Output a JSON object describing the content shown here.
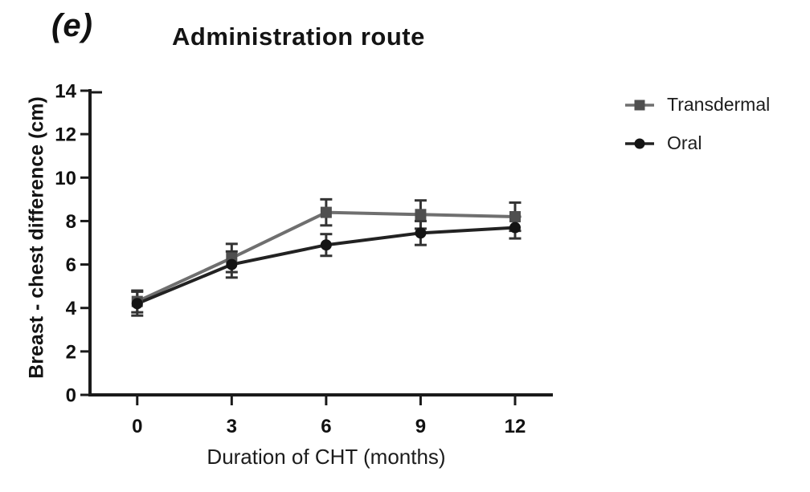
{
  "figure": {
    "panel_label": "(e)"
  },
  "chart_data": {
    "type": "line",
    "title": "Administration route",
    "xlabel": "Duration of CHT (months)",
    "ylabel": "Breast - chest difference (cm)",
    "x": [
      0,
      3,
      6,
      9,
      12
    ],
    "xticks": [
      0,
      3,
      6,
      9,
      12
    ],
    "yticks": [
      0,
      2,
      4,
      6,
      8,
      10,
      12,
      14
    ],
    "xlim": [
      -1.5,
      13.2
    ],
    "ylim": [
      0,
      14
    ],
    "grid": false,
    "legend_position": "right-of-plot-top",
    "axis_color": "#1a1a1a",
    "error_bar_color": "#333333",
    "series": [
      {
        "name": "Transdermal",
        "marker": "square",
        "line_color": "#6f6f6f",
        "marker_color": "#4f4f4f",
        "values": [
          4.3,
          6.3,
          8.4,
          8.3,
          8.2
        ],
        "errors": [
          0.5,
          0.65,
          0.6,
          0.65,
          0.65
        ]
      },
      {
        "name": "Oral",
        "marker": "circle",
        "line_color": "#222222",
        "marker_color": "#141414",
        "values": [
          4.2,
          6.0,
          6.9,
          7.45,
          7.7
        ],
        "errors": [
          0.55,
          0.6,
          0.5,
          0.55,
          0.5
        ]
      }
    ]
  }
}
